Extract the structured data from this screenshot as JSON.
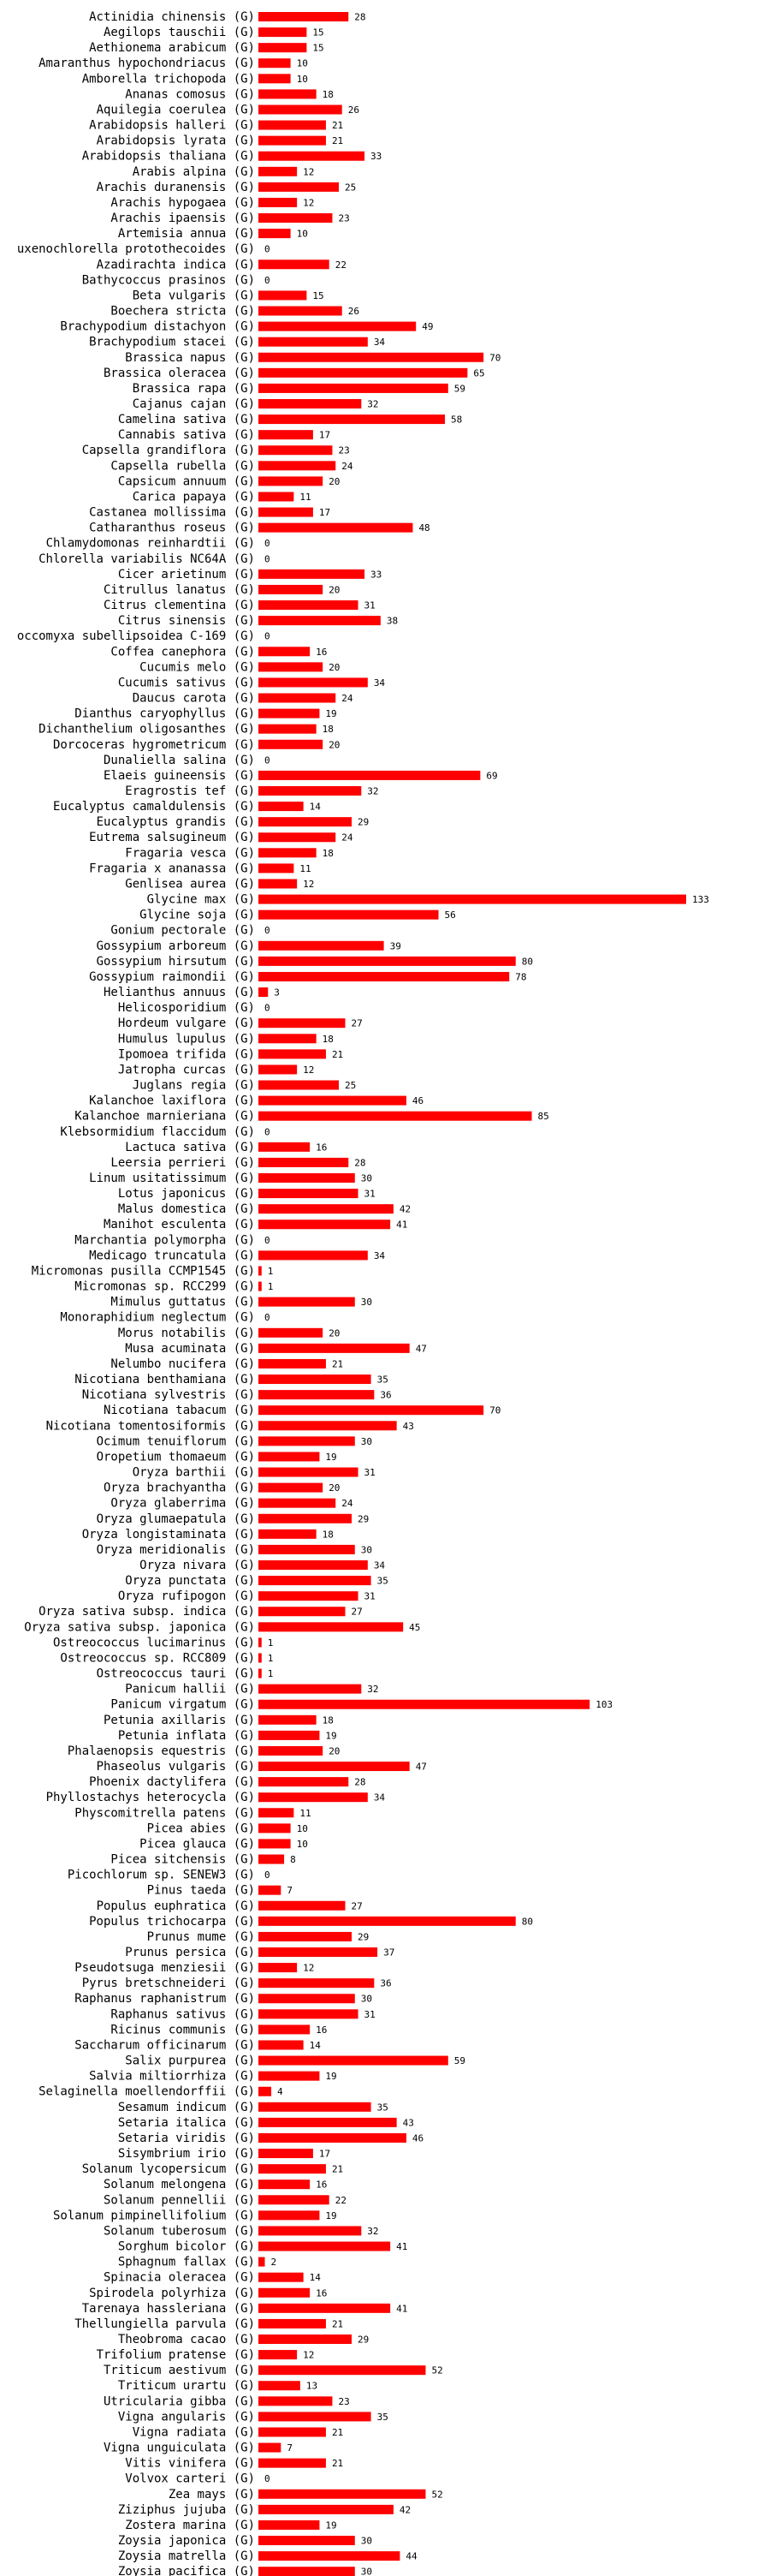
{
  "chart_data": {
    "type": "bar",
    "orientation": "horizontal",
    "title": "",
    "xlabel": "",
    "ylabel": "",
    "xlim": [
      0,
      133
    ],
    "grid": false,
    "bar_color": "#ff0000",
    "label_suffix": " (G)",
    "categories": [
      "Actinidia chinensis",
      "Aegilops tauschii",
      "Aethionema arabicum",
      "Amaranthus hypochondriacus",
      "Amborella trichopoda",
      "Ananas comosus",
      "Aquilegia coerulea",
      "Arabidopsis halleri",
      "Arabidopsis lyrata",
      "Arabidopsis thaliana",
      "Arabis alpina",
      "Arachis duranensis",
      "Arachis hypogaea",
      "Arachis ipaensis",
      "Artemisia annua",
      "uxenochlorella protothecoides",
      "Azadirachta indica",
      "Bathycoccus prasinos",
      "Beta vulgaris",
      "Boechera stricta",
      "Brachypodium distachyon",
      "Brachypodium stacei",
      "Brassica napus",
      "Brassica oleracea",
      "Brassica rapa",
      "Cajanus cajan",
      "Camelina sativa",
      "Cannabis sativa",
      "Capsella grandiflora",
      "Capsella rubella",
      "Capsicum annuum",
      "Carica papaya",
      "Castanea mollissima",
      "Catharanthus roseus",
      "Chlamydomonas reinhardtii",
      "Chlorella variabilis NC64A",
      "Cicer arietinum",
      "Citrullus lanatus",
      "Citrus clementina",
      "Citrus sinensis",
      "occomyxa subellipsoidea C-169",
      "Coffea canephora",
      "Cucumis melo",
      "Cucumis sativus",
      "Daucus carota",
      "Dianthus caryophyllus",
      "Dichanthelium oligosanthes",
      "Dorcoceras hygrometricum",
      "Dunaliella salina",
      "Elaeis guineensis",
      "Eragrostis tef",
      "Eucalyptus camaldulensis",
      "Eucalyptus grandis",
      "Eutrema salsugineum",
      "Fragaria vesca",
      "Fragaria x ananassa",
      "Genlisea aurea",
      "Glycine max",
      "Glycine soja",
      "Gonium pectorale",
      "Gossypium arboreum",
      "Gossypium hirsutum",
      "Gossypium raimondii",
      "Helianthus annuus",
      "Helicosporidium",
      "Hordeum vulgare",
      "Humulus lupulus",
      "Ipomoea trifida",
      "Jatropha curcas",
      "Juglans regia",
      "Kalanchoe laxiflora",
      "Kalanchoe marnieriana",
      "Klebsormidium flaccidum",
      "Lactuca sativa",
      "Leersia perrieri",
      "Linum usitatissimum",
      "Lotus japonicus",
      "Malus domestica",
      "Manihot esculenta",
      "Marchantia polymorpha",
      "Medicago truncatula",
      "Micromonas pusilla CCMP1545",
      "Micromonas sp. RCC299",
      "Mimulus guttatus",
      "Monoraphidium neglectum",
      "Morus notabilis",
      "Musa acuminata",
      "Nelumbo nucifera",
      "Nicotiana benthamiana",
      "Nicotiana sylvestris",
      "Nicotiana tabacum",
      "Nicotiana tomentosiformis",
      "Ocimum tenuiflorum",
      "Oropetium thomaeum",
      "Oryza barthii",
      "Oryza brachyantha",
      "Oryza glaberrima",
      "Oryza glumaepatula",
      "Oryza longistaminata",
      "Oryza meridionalis",
      "Oryza nivara",
      "Oryza punctata",
      "Oryza rufipogon",
      "Oryza sativa subsp. indica",
      "Oryza sativa subsp. japonica",
      "Ostreococcus lucimarinus",
      "Ostreococcus sp. RCC809",
      "Ostreococcus tauri",
      "Panicum hallii",
      "Panicum virgatum",
      "Petunia axillaris",
      "Petunia inflata",
      "Phalaenopsis equestris",
      "Phaseolus vulgaris",
      "Phoenix dactylifera",
      "Phyllostachys heterocycla",
      "Physcomitrella patens",
      "Picea abies",
      "Picea glauca",
      "Picea sitchensis",
      "Picochlorum sp. SENEW3",
      "Pinus taeda",
      "Populus euphratica",
      "Populus trichocarpa",
      "Prunus mume",
      "Prunus persica",
      "Pseudotsuga menziesii",
      "Pyrus bretschneideri",
      "Raphanus raphanistrum",
      "Raphanus sativus",
      "Ricinus communis",
      "Saccharum officinarum",
      "Salix purpurea",
      "Salvia miltiorrhiza",
      "Selaginella moellendorffii",
      "Sesamum indicum",
      "Setaria italica",
      "Setaria viridis",
      "Sisymbrium irio",
      "Solanum lycopersicum",
      "Solanum melongena",
      "Solanum pennellii",
      "Solanum pimpinellifolium",
      "Solanum tuberosum",
      "Sorghum bicolor",
      "Sphagnum fallax",
      "Spinacia oleracea",
      "Spirodela polyrhiza",
      "Tarenaya hassleriana",
      "Thellungiella parvula",
      "Theobroma cacao",
      "Trifolium pratense",
      "Triticum aestivum",
      "Triticum urartu",
      "Utricularia gibba",
      "Vigna angularis",
      "Vigna radiata",
      "Vigna unguiculata",
      "Vitis vinifera",
      "Volvox carteri",
      "Zea mays",
      "Ziziphus jujuba",
      "Zostera marina",
      "Zoysia japonica",
      "Zoysia matrella",
      "Zoysia pacifica"
    ],
    "values": [
      28,
      15,
      15,
      10,
      10,
      18,
      26,
      21,
      21,
      33,
      12,
      25,
      12,
      23,
      10,
      0,
      22,
      0,
      15,
      26,
      49,
      34,
      70,
      65,
      59,
      32,
      58,
      17,
      23,
      24,
      20,
      11,
      17,
      48,
      0,
      0,
      33,
      20,
      31,
      38,
      0,
      16,
      20,
      34,
      24,
      19,
      18,
      20,
      0,
      69,
      32,
      14,
      29,
      24,
      18,
      11,
      12,
      133,
      56,
      0,
      39,
      80,
      78,
      3,
      0,
      27,
      18,
      21,
      12,
      25,
      46,
      85,
      0,
      16,
      28,
      30,
      31,
      42,
      41,
      0,
      34,
      1,
      1,
      30,
      0,
      20,
      47,
      21,
      35,
      36,
      70,
      43,
      30,
      19,
      31,
      20,
      24,
      29,
      18,
      30,
      34,
      35,
      31,
      27,
      45,
      1,
      1,
      1,
      32,
      103,
      18,
      19,
      20,
      47,
      28,
      34,
      11,
      10,
      10,
      8,
      0,
      7,
      27,
      80,
      29,
      37,
      12,
      36,
      30,
      31,
      16,
      14,
      59,
      19,
      4,
      35,
      43,
      46,
      17,
      21,
      16,
      22,
      19,
      32,
      41,
      2,
      14,
      16,
      41,
      21,
      29,
      12,
      52,
      13,
      23,
      35,
      21,
      7,
      21,
      0,
      52,
      42,
      19,
      30,
      44,
      30
    ]
  }
}
